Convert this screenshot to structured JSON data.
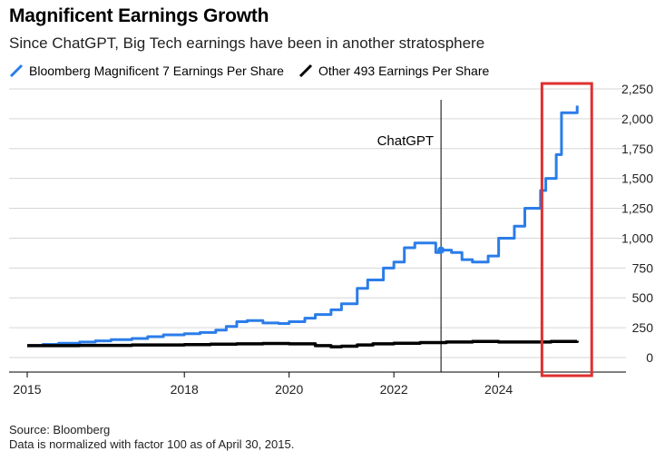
{
  "header": {
    "title": "Magnificent Earnings Growth",
    "subtitle": "Since ChatGPT, Big Tech earnings have been in another stratosphere"
  },
  "legend": {
    "mag7": "Bloomberg Magnificent 7 Earnings Per Share",
    "other": "Other 493 Earnings Per Share"
  },
  "footer": {
    "source": "Source: Bloomberg",
    "note": "Data is normalized with factor 100 as of April 30, 2015."
  },
  "colors": {
    "mag7": "#2b7de9",
    "other": "#000000",
    "highlight": "#e03030",
    "grid": "#d6d6d6"
  },
  "chart_data": {
    "type": "line",
    "title": "Magnificent Earnings Growth",
    "subtitle": "Since ChatGPT, Big Tech earnings have been in another stratosphere",
    "xlabel": "",
    "ylabel": "",
    "xlim": [
      2015.0,
      2025.6
    ],
    "ylim": [
      0,
      2250
    ],
    "x_ticks": [
      2015,
      2018,
      2020,
      2022,
      2024
    ],
    "x_tick_labels": [
      "2015",
      "2018",
      "2020",
      "2022",
      "2024"
    ],
    "y_ticks": [
      0,
      250,
      500,
      750,
      1000,
      1250,
      1500,
      1750,
      2000,
      2250
    ],
    "y_tick_labels": [
      "0",
      "250",
      "500",
      "750",
      "1,000",
      "1,250",
      "1,500",
      "1,750",
      "2,000",
      "2,250"
    ],
    "grid": true,
    "legend_position": "top",
    "annotations": [
      {
        "text": "ChatGPT",
        "x": 2022.9
      }
    ],
    "highlight_region": {
      "x": [
        2025.0,
        2025.5
      ]
    },
    "series": [
      {
        "name": "Bloomberg Magnificent 7 Earnings Per Share",
        "color": "#2b7de9",
        "x": [
          2015.0,
          2015.3,
          2015.6,
          2016.0,
          2016.3,
          2016.6,
          2017.0,
          2017.3,
          2017.6,
          2018.0,
          2018.3,
          2018.6,
          2018.8,
          2019.0,
          2019.2,
          2019.5,
          2019.8,
          2020.0,
          2020.3,
          2020.5,
          2020.8,
          2021.0,
          2021.3,
          2021.5,
          2021.8,
          2022.0,
          2022.2,
          2022.4,
          2022.6,
          2022.8,
          2022.9,
          2023.1,
          2023.3,
          2023.5,
          2023.8,
          2024.0,
          2024.3,
          2024.5,
          2024.8,
          2024.9,
          2025.1,
          2025.2,
          2025.5
        ],
        "y": [
          100,
          110,
          120,
          130,
          140,
          150,
          160,
          175,
          190,
          200,
          210,
          230,
          260,
          300,
          310,
          290,
          285,
          300,
          330,
          360,
          400,
          450,
          580,
          650,
          750,
          800,
          920,
          960,
          960,
          880,
          900,
          880,
          820,
          800,
          850,
          1000,
          1100,
          1250,
          1400,
          1500,
          1700,
          2050,
          2110
        ]
      },
      {
        "name": "Other 493 Earnings Per Share",
        "color": "#000000",
        "x": [
          2015.0,
          2016.0,
          2017.0,
          2018.0,
          2018.5,
          2019.0,
          2019.5,
          2020.0,
          2020.5,
          2020.8,
          2021.0,
          2021.3,
          2021.6,
          2022.0,
          2022.5,
          2023.0,
          2023.5,
          2024.0,
          2024.5,
          2025.0,
          2025.5
        ],
        "y": [
          100,
          102,
          105,
          108,
          112,
          115,
          118,
          115,
          100,
          90,
          95,
          105,
          115,
          120,
          125,
          130,
          135,
          130,
          130,
          135,
          140
        ]
      }
    ]
  }
}
